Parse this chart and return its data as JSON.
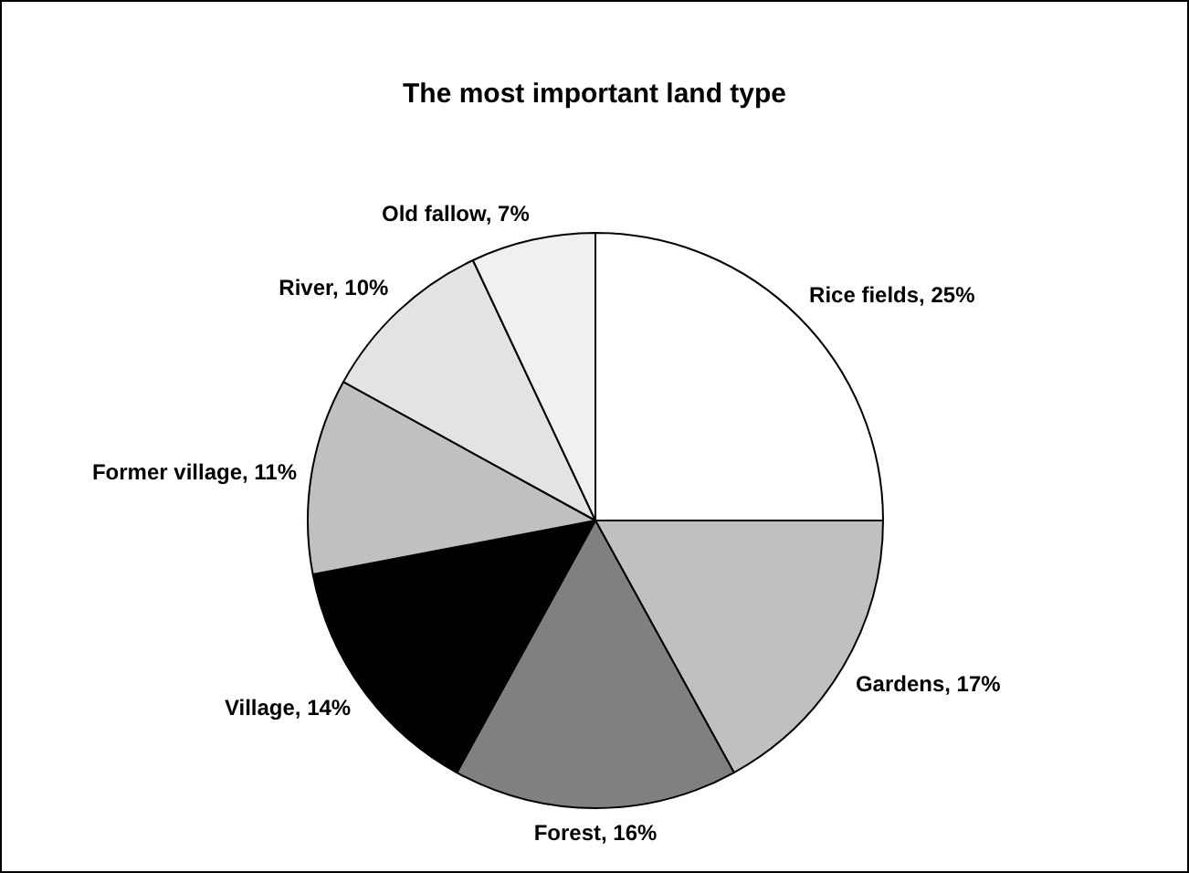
{
  "chart_data": {
    "type": "pie",
    "title": "The most important land type",
    "categories": [
      "Rice fields",
      "Gardens",
      "Forest",
      "Village",
      "Former village",
      "River",
      "Old fallow"
    ],
    "values": [
      25,
      17,
      16,
      14,
      11,
      10,
      7
    ],
    "value_labels": [
      "25%",
      "17%",
      "16%",
      "14%",
      "11%",
      "10%",
      "7%"
    ],
    "colors": [
      "#ffffff",
      "#c0c0c0",
      "#808080",
      "#000000",
      "#c0c0c0",
      "#e3e3e3",
      "#f0f0f0"
    ],
    "legend": false
  }
}
